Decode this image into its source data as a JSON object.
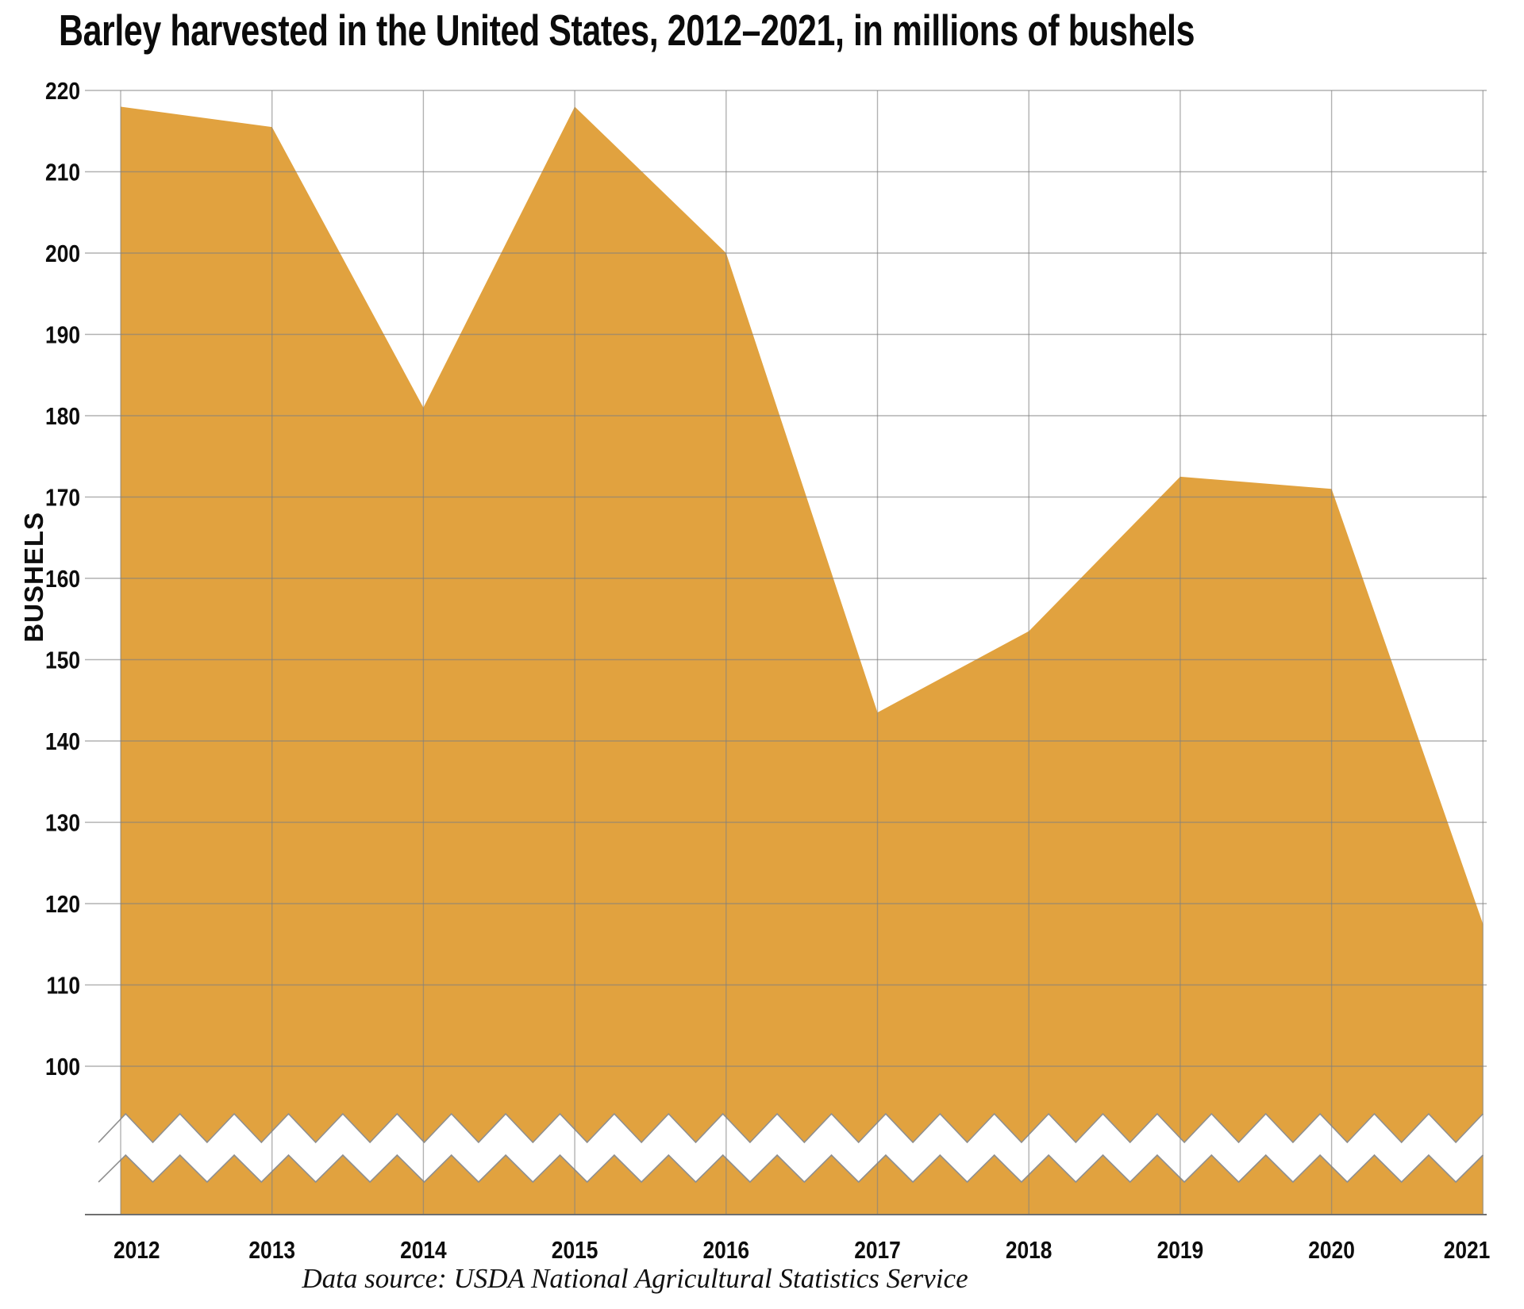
{
  "page": {
    "background": "#ffffff"
  },
  "chart_data": {
    "type": "area",
    "title": "Barley harvested in the United States, 2012–2021, in millions of bushels",
    "ylabel": "BUSHELS",
    "xlabel": "",
    "source": "Data source: USDA National Agricultural Statistics Service",
    "categories": [
      2012,
      2013,
      2014,
      2015,
      2016,
      2017,
      2018,
      2019,
      2020,
      2021
    ],
    "values": [
      218,
      215.5,
      181,
      218,
      200,
      143.5,
      153.5,
      172.5,
      171,
      117.5
    ],
    "y_ticks": [
      100,
      110,
      120,
      130,
      140,
      150,
      160,
      170,
      180,
      190,
      200,
      210,
      220
    ],
    "ylim": [
      100,
      220
    ],
    "y_axis_break": true,
    "grid": true,
    "legend": false,
    "fill_color": "#E1A23F",
    "grid_color": "#808080",
    "axis_line_color": "#6f6f6f",
    "break_line_color": "#8f8f8f",
    "text_color": "#0d0d0d"
  }
}
